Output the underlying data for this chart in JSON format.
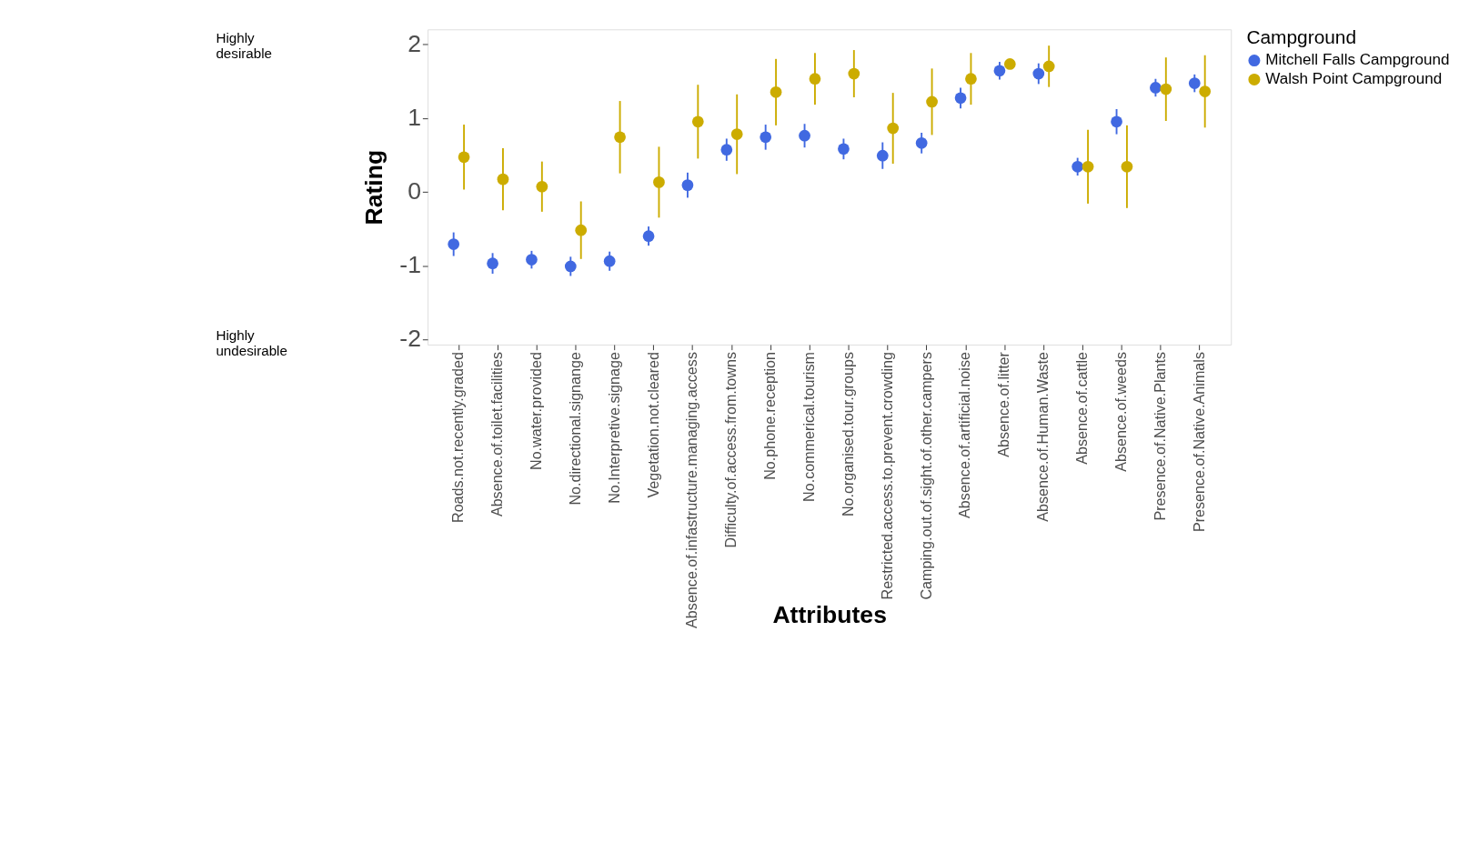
{
  "chart_data": {
    "type": "scatter",
    "xlabel": "Attributes",
    "ylabel": "Rating",
    "legend_title": "Campground",
    "categories": [
      "Roads.not.recently.graded",
      "Absence.of.toilet.facilities",
      "No.water.provided",
      "No.directional.signange",
      "No.Interpretive.signage",
      "Vegetation.not.cleared",
      "Absence.of.infastructure.managing.access",
      "Difficulty.of.access.from.towns",
      "No.phone.reception",
      "No.commerical.tourism",
      "No.organised.tour.groups",
      "Restricted.access.to.prevent.crowding",
      "Camping.out.of.sight.of.other.campers",
      "Absence.of.artificial.noise",
      "Absence.of.litter",
      "Absence.of.Human.Waste",
      "Absence.of.cattle",
      "Absence.of.weeds",
      "Presence.of.Native.Plants",
      "Presence.of.Native.Animals"
    ],
    "series": [
      {
        "name": "Mitchell Falls Campground",
        "color": "#4169e1",
        "values": [
          -0.71,
          -0.97,
          -0.92,
          -1.01,
          -0.94,
          -0.6,
          0.09,
          0.57,
          0.74,
          0.76,
          0.58,
          0.49,
          0.66,
          1.27,
          1.64,
          1.6,
          0.34,
          0.95,
          1.41,
          1.47
        ],
        "errors": [
          0.16,
          0.14,
          0.12,
          0.13,
          0.13,
          0.13,
          0.17,
          0.15,
          0.17,
          0.16,
          0.14,
          0.18,
          0.14,
          0.14,
          0.12,
          0.14,
          0.12,
          0.17,
          0.12,
          0.12
        ]
      },
      {
        "name": "Walsh Point Campground",
        "color": "#ccac00",
        "values": [
          0.47,
          0.17,
          0.07,
          -0.52,
          0.74,
          0.13,
          0.95,
          0.78,
          1.35,
          1.53,
          1.6,
          0.86,
          1.22,
          1.53,
          1.73,
          1.7,
          0.34,
          0.34,
          1.39,
          1.36
        ],
        "errors": [
          0.44,
          0.42,
          0.34,
          0.39,
          0.49,
          0.48,
          0.5,
          0.54,
          0.45,
          0.35,
          0.32,
          0.48,
          0.45,
          0.35,
          0.03,
          0.28,
          0.5,
          0.56,
          0.43,
          0.49
        ]
      }
    ],
    "ylim": [
      -2.07,
      2.2
    ],
    "yticks": [
      -2,
      -1,
      0,
      1,
      2
    ],
    "grid": false,
    "legend": "right",
    "marker": "circle",
    "annotations": [
      "Highly desirable",
      "Highly undesirable"
    ]
  }
}
